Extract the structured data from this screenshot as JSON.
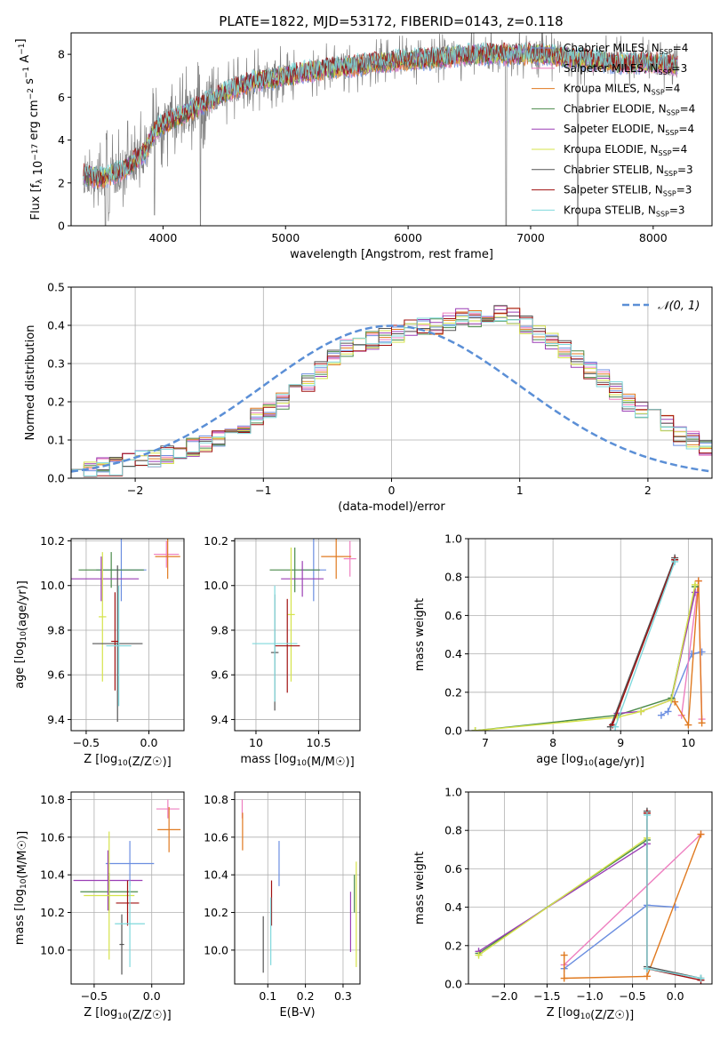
{
  "figure_title": "PLATE=1822, MJD=53172, FIBERID=0143, z=0.118",
  "colors": {
    "Chabrier MILES": "#6b8ee0",
    "Salpeter MILES": "#ee7fc0",
    "Kroupa MILES": "#e07a20",
    "Chabrier ELODIE": "#4a8a4a",
    "Salpeter ELODIE": "#9b3fb5",
    "Kroupa ELODIE": "#d5e34a",
    "Chabrier STELIB": "#555555",
    "Salpeter STELIB": "#a01010",
    "Kroupa STELIB": "#7fd8dc",
    "gaussian": "#5b8fd6",
    "data": "#808080"
  },
  "chart_data": [
    {
      "id": "spectrum",
      "type": "line",
      "xlabel": "wavelength [Angstrom, rest frame]",
      "ylabel": "Flux [f_λ 10^-17 erg cm^-2 s^-1 A^-1]",
      "xlim": [
        3250,
        8480
      ],
      "ylim": [
        0,
        9
      ],
      "xticks": [
        4000,
        5000,
        6000,
        7000,
        8000
      ],
      "yticks": [
        0,
        2,
        4,
        6,
        8
      ],
      "grid": false,
      "legend_position": "top-right",
      "legend": [
        {
          "label": "Chabrier MILES, N_SSP=4",
          "color": "#6b8ee0"
        },
        {
          "label": "Salpeter MILES, N_SSP=3",
          "color": "#ee7fc0"
        },
        {
          "label": "Kroupa MILES, N_SSP=4",
          "color": "#e07a20"
        },
        {
          "label": "Chabrier ELODIE, N_SSP=4",
          "color": "#4a8a4a"
        },
        {
          "label": "Salpeter ELODIE, N_SSP=4",
          "color": "#9b3fb5"
        },
        {
          "label": "Kroupa ELODIE, N_SSP=4",
          "color": "#d5e34a"
        },
        {
          "label": "Chabrier STELIB, N_SSP=3",
          "color": "#555555"
        },
        {
          "label": "Salpeter STELIB, N_SSP=3",
          "color": "#a01010"
        },
        {
          "label": "Kroupa STELIB, N_SSP=3",
          "color": "#7fd8dc"
        }
      ],
      "continuum": [
        [
          3350,
          2.4
        ],
        [
          3500,
          2.2
        ],
        [
          3700,
          2.7
        ],
        [
          3850,
          3.4
        ],
        [
          3950,
          4.6
        ],
        [
          4100,
          5.0
        ],
        [
          4300,
          5.6
        ],
        [
          4500,
          6.2
        ],
        [
          4700,
          6.7
        ],
        [
          5000,
          7.0
        ],
        [
          5300,
          7.3
        ],
        [
          5600,
          7.5
        ],
        [
          5900,
          7.7
        ],
        [
          6200,
          7.8
        ],
        [
          6500,
          8.0
        ],
        [
          6800,
          8.0
        ],
        [
          7100,
          8.0
        ],
        [
          7400,
          7.8
        ],
        [
          7700,
          7.6
        ],
        [
          8000,
          7.6
        ],
        [
          8200,
          7.5
        ]
      ],
      "dips": [
        [
          3530,
          0
        ],
        [
          3560,
          0.6
        ],
        [
          3930,
          0.5
        ],
        [
          4305,
          0
        ],
        [
          6800,
          0
        ],
        [
          7385,
          0
        ]
      ]
    },
    {
      "id": "residuals",
      "type": "step",
      "xlabel": "(data-model)/error",
      "ylabel": "Normed distribution",
      "xlim": [
        -2.5,
        2.5
      ],
      "ylim": [
        0,
        0.5
      ],
      "xticks": [
        -2,
        -1,
        0,
        1,
        2
      ],
      "xtick_labels": [
        "−2",
        "−1",
        "0",
        "1",
        "2"
      ],
      "yticks": [
        0.0,
        0.1,
        0.2,
        0.3,
        0.4,
        0.5
      ],
      "grid": true,
      "legend_position": "top-right",
      "legend": [
        {
          "label": "𝒩(0, 1)",
          "color": "#5b8fd6",
          "style": "dashed"
        }
      ],
      "bin_width": 0.1,
      "bin_start": -2.5,
      "base_histogram": [
        0.03,
        0.02,
        0.03,
        0.03,
        0.04,
        0.05,
        0.05,
        0.06,
        0.07,
        0.08,
        0.09,
        0.1,
        0.12,
        0.14,
        0.16,
        0.18,
        0.2,
        0.22,
        0.25,
        0.28,
        0.31,
        0.34,
        0.35,
        0.36,
        0.37,
        0.38,
        0.39,
        0.4,
        0.4,
        0.41,
        0.42,
        0.42,
        0.43,
        0.43,
        0.42,
        0.4,
        0.38,
        0.36,
        0.34,
        0.31,
        0.28,
        0.26,
        0.23,
        0.2,
        0.18,
        0.16,
        0.14,
        0.11,
        0.1,
        0.08
      ]
    },
    {
      "id": "age_vs_Z",
      "type": "scatter",
      "xlabel": "Z [log10(Z/Z☉)]",
      "ylabel": "age  [log10(age/yr)]",
      "xlim": [
        -0.62,
        0.28
      ],
      "ylim": [
        9.35,
        10.21
      ],
      "xticks": [
        -0.5,
        0.0
      ],
      "xtick_labels": [
        "−0.5",
        "0.0"
      ],
      "yticks": [
        9.4,
        9.6,
        9.8,
        10.0,
        10.2
      ],
      "grid": true,
      "errorbars": [
        {
          "model": "Chabrier MILES",
          "x": -0.22,
          "xerr": 0.2,
          "y": 10.07,
          "yerr": 0.14
        },
        {
          "model": "Salpeter MILES",
          "x": 0.14,
          "xerr": 0.1,
          "y": 10.14,
          "yerr": 0.06
        },
        {
          "model": "Kroupa MILES",
          "x": 0.15,
          "xerr": 0.1,
          "y": 10.13,
          "yerr": 0.1
        },
        {
          "model": "Chabrier ELODIE",
          "x": -0.3,
          "xerr": 0.26,
          "y": 10.07,
          "yerr": 0.08
        },
        {
          "model": "Salpeter ELODIE",
          "x": -0.38,
          "xerr": 0.3,
          "y": 10.03,
          "yerr": 0.1
        },
        {
          "model": "Kroupa ELODIE",
          "x": -0.37,
          "xerr": 0.03,
          "y": 9.86,
          "yerr": 0.29
        },
        {
          "model": "Chabrier STELIB",
          "x": -0.25,
          "xerr": 0.2,
          "y": 9.74,
          "yerr": 0.35
        },
        {
          "model": "Salpeter STELIB",
          "x": -0.27,
          "xerr": 0.03,
          "y": 9.75,
          "yerr": 0.22
        },
        {
          "model": "Kroupa STELIB",
          "x": -0.24,
          "xerr": 0.1,
          "y": 9.73,
          "yerr": 0.27
        }
      ]
    },
    {
      "id": "age_vs_mass",
      "type": "scatter",
      "xlabel": "mass [log10(M/M☉)]",
      "xlim": [
        9.83,
        10.83
      ],
      "ylim": [
        9.35,
        10.21
      ],
      "xticks": [
        10.0,
        10.5
      ],
      "yticks": [
        9.4,
        9.6,
        9.8,
        10.0,
        10.2
      ],
      "grid": true,
      "errorbars": [
        {
          "model": "Chabrier MILES",
          "x": 10.46,
          "xerr": 0.1,
          "y": 10.07,
          "yerr": 0.14
        },
        {
          "model": "Salpeter MILES",
          "x": 10.75,
          "xerr": 0.05,
          "y": 10.12,
          "yerr": 0.08
        },
        {
          "model": "Kroupa MILES",
          "x": 10.64,
          "xerr": 0.12,
          "y": 10.13,
          "yerr": 0.1
        },
        {
          "model": "Chabrier ELODIE",
          "x": 10.31,
          "xerr": 0.2,
          "y": 10.07,
          "yerr": 0.1
        },
        {
          "model": "Salpeter ELODIE",
          "x": 10.37,
          "xerr": 0.17,
          "y": 10.03,
          "yerr": 0.08
        },
        {
          "model": "Kroupa ELODIE",
          "x": 10.28,
          "xerr": 0.03,
          "y": 9.87,
          "yerr": 0.3
        },
        {
          "model": "Chabrier STELIB",
          "x": 10.15,
          "xerr": 0.03,
          "y": 9.7,
          "yerr": 0.26
        },
        {
          "model": "Salpeter STELIB",
          "x": 10.25,
          "xerr": 0.1,
          "y": 9.73,
          "yerr": 0.21
        },
        {
          "model": "Kroupa STELIB",
          "x": 10.15,
          "xerr": 0.18,
          "y": 9.74,
          "yerr": 0.26
        }
      ]
    },
    {
      "id": "mass_weight_vs_age",
      "type": "line",
      "xlabel": "age  [log10(age/yr)]",
      "ylabel": "mass weight",
      "xlim": [
        6.75,
        10.35
      ],
      "ylim": [
        0,
        1
      ],
      "xticks": [
        7,
        8,
        9,
        10
      ],
      "yticks": [
        0.0,
        0.2,
        0.4,
        0.6,
        0.8,
        1.0
      ],
      "grid": true,
      "series": [
        {
          "model": "Chabrier MILES",
          "points": [
            [
              9.6,
              0.08
            ],
            [
              9.7,
              0.1
            ],
            [
              10.05,
              0.4
            ],
            [
              10.2,
              0.41
            ]
          ]
        },
        {
          "model": "Salpeter MILES",
          "points": [
            [
              9.9,
              0.08
            ],
            [
              10.15,
              0.78
            ],
            [
              10.2,
              0.06
            ]
          ]
        },
        {
          "model": "Kroupa MILES",
          "points": [
            [
              9.8,
              0.15
            ],
            [
              10.0,
              0.03
            ],
            [
              10.15,
              0.78
            ],
            [
              10.2,
              0.04
            ]
          ]
        },
        {
          "model": "Chabrier ELODIE",
          "points": [
            [
              6.85,
              0.0
            ],
            [
              8.95,
              0.08
            ],
            [
              9.75,
              0.17
            ],
            [
              10.1,
              0.75
            ]
          ]
        },
        {
          "model": "Salpeter ELODIE",
          "points": [
            [
              8.95,
              0.09
            ],
            [
              9.3,
              0.1
            ],
            [
              9.75,
              0.16
            ],
            [
              10.1,
              0.72
            ]
          ]
        },
        {
          "model": "Kroupa ELODIE",
          "points": [
            [
              6.85,
              0.0
            ],
            [
              8.95,
              0.07
            ],
            [
              9.3,
              0.1
            ],
            [
              9.75,
              0.16
            ],
            [
              10.1,
              0.76
            ]
          ]
        },
        {
          "model": "Chabrier STELIB",
          "points": [
            [
              8.85,
              0.02
            ],
            [
              9.8,
              0.9
            ]
          ]
        },
        {
          "model": "Salpeter STELIB",
          "points": [
            [
              8.88,
              0.03
            ],
            [
              9.8,
              0.89
            ]
          ]
        },
        {
          "model": "Kroupa STELIB",
          "points": [
            [
              8.92,
              0.02
            ],
            [
              9.8,
              0.88
            ]
          ]
        }
      ]
    },
    {
      "id": "mass_vs_Z",
      "type": "scatter",
      "xlabel": "Z [log10(Z/Z☉)]",
      "ylabel": "mass [log10(M/M☉)]",
      "xlim": [
        -0.7,
        0.28
      ],
      "ylim": [
        9.82,
        10.84
      ],
      "xticks": [
        -0.5,
        0.0
      ],
      "xtick_labels": [
        "−0.5",
        "0.0"
      ],
      "yticks": [
        10.0,
        10.2,
        10.4,
        10.6,
        10.8
      ],
      "grid": true,
      "errorbars": [
        {
          "model": "Chabrier MILES",
          "x": -0.19,
          "xerr": 0.21,
          "y": 10.46,
          "yerr": 0.12
        },
        {
          "model": "Salpeter MILES",
          "x": 0.14,
          "xerr": 0.1,
          "y": 10.75,
          "yerr": 0.05
        },
        {
          "model": "Kroupa MILES",
          "x": 0.15,
          "xerr": 0.1,
          "y": 10.64,
          "yerr": 0.12
        },
        {
          "model": "Chabrier ELODIE",
          "x": -0.37,
          "xerr": 0.25,
          "y": 10.31,
          "yerr": 0.1
        },
        {
          "model": "Salpeter ELODIE",
          "x": -0.38,
          "xerr": 0.3,
          "y": 10.37,
          "yerr": 0.16
        },
        {
          "model": "Kroupa ELODIE",
          "x": -0.37,
          "xerr": 0.22,
          "y": 10.29,
          "yerr": 0.34
        },
        {
          "model": "Chabrier STELIB",
          "x": -0.26,
          "xerr": 0.02,
          "y": 10.03,
          "yerr": 0.16
        },
        {
          "model": "Salpeter STELIB",
          "x": -0.21,
          "xerr": 0.1,
          "y": 10.25,
          "yerr": 0.12
        },
        {
          "model": "Kroupa STELIB",
          "x": -0.19,
          "xerr": 0.13,
          "y": 10.14,
          "yerr": 0.23
        }
      ]
    },
    {
      "id": "mass_vs_ebv",
      "type": "scatter",
      "xlabel": "E(B-V)",
      "xlim": [
        0.012,
        0.345
      ],
      "ylim": [
        9.82,
        10.84
      ],
      "xticks": [
        0.1,
        0.2,
        0.3
      ],
      "yticks": [
        10.0,
        10.2,
        10.4,
        10.6,
        10.8
      ],
      "grid": true,
      "errorbars": [
        {
          "model": "Chabrier MILES",
          "x": 0.13,
          "xerr": 0,
          "y": 10.46,
          "yerr": 0.12
        },
        {
          "model": "Salpeter MILES",
          "x": 0.032,
          "xerr": 0,
          "y": 10.75,
          "yerr": 0.05
        },
        {
          "model": "Kroupa MILES",
          "x": 0.033,
          "xerr": 0,
          "y": 10.63,
          "yerr": 0.1
        },
        {
          "model": "Chabrier ELODIE",
          "x": 0.33,
          "xerr": 0,
          "y": 10.3,
          "yerr": 0.1
        },
        {
          "model": "Salpeter ELODIE",
          "x": 0.32,
          "xerr": 0,
          "y": 10.15,
          "yerr": 0.16
        },
        {
          "model": "Kroupa ELODIE",
          "x": 0.335,
          "xerr": 0,
          "y": 10.19,
          "yerr": 0.28
        },
        {
          "model": "Chabrier STELIB",
          "x": 0.088,
          "xerr": 0,
          "y": 10.03,
          "yerr": 0.15
        },
        {
          "model": "Salpeter STELIB",
          "x": 0.11,
          "xerr": 0,
          "y": 10.25,
          "yerr": 0.12
        },
        {
          "model": "Kroupa STELIB",
          "x": 0.108,
          "xerr": 0,
          "y": 10.1,
          "yerr": 0.18
        }
      ]
    },
    {
      "id": "mass_weight_vs_Z",
      "type": "line",
      "xlabel": "Z [log10(Z/Z☉)]",
      "ylabel": "mass weight",
      "xlim": [
        -2.42,
        0.43
      ],
      "ylim": [
        0,
        1
      ],
      "xticks": [
        -2.0,
        -1.5,
        -1.0,
        -0.5,
        0.0
      ],
      "xtick_labels": [
        "−2.0",
        "−1.5",
        "−1.0",
        "−0.5",
        "0.0"
      ],
      "yticks": [
        0.0,
        0.2,
        0.4,
        0.6,
        0.8,
        1.0
      ],
      "grid": true,
      "series": [
        {
          "model": "Chabrier MILES",
          "points": [
            [
              -1.3,
              0.08
            ],
            [
              -0.33,
              0.41
            ],
            [
              0.0,
              0.4
            ]
          ]
        },
        {
          "model": "Salpeter MILES",
          "points": [
            [
              -1.3,
              0.1
            ],
            [
              0.3,
              0.78
            ]
          ]
        },
        {
          "model": "Kroupa MILES",
          "points": [
            [
              -1.3,
              0.15
            ],
            [
              -1.3,
              0.03
            ],
            [
              -0.33,
              0.04
            ],
            [
              0.3,
              0.78
            ]
          ]
        },
        {
          "model": "Chabrier ELODIE",
          "points": [
            [
              -2.3,
              0.16
            ],
            [
              -0.33,
              0.75
            ]
          ]
        },
        {
          "model": "Salpeter ELODIE",
          "points": [
            [
              -2.3,
              0.17
            ],
            [
              -0.33,
              0.73
            ]
          ]
        },
        {
          "model": "Kroupa ELODIE",
          "points": [
            [
              -2.3,
              0.15
            ],
            [
              -0.33,
              0.76
            ]
          ]
        },
        {
          "model": "Chabrier STELIB",
          "points": [
            [
              -0.33,
              0.9
            ],
            [
              -0.33,
              0.09
            ],
            [
              0.3,
              0.03
            ]
          ]
        },
        {
          "model": "Salpeter STELIB",
          "points": [
            [
              -0.33,
              0.89
            ],
            [
              -0.33,
              0.08
            ],
            [
              0.3,
              0.02
            ]
          ]
        },
        {
          "model": "Kroupa STELIB",
          "points": [
            [
              -0.33,
              0.88
            ],
            [
              -0.33,
              0.08
            ],
            [
              0.3,
              0.03
            ]
          ]
        }
      ]
    }
  ]
}
